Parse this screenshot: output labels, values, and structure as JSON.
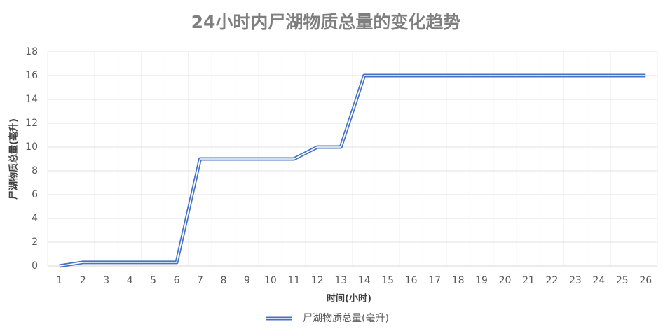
{
  "chart_data": {
    "type": "line",
    "title": "24小时内尸湖物质总量的变化趋势",
    "x_label": "时间(小时)",
    "y_label": "尸湖物质总量(毫升)",
    "categories": [
      "1",
      "2",
      "3",
      "4",
      "5",
      "6",
      "7",
      "8",
      "9",
      "10",
      "11",
      "12",
      "13",
      "14",
      "15",
      "16",
      "17",
      "18",
      "19",
      "20",
      "21",
      "22",
      "23",
      "24",
      "25",
      "26"
    ],
    "series": [
      {
        "name": "尸湖物质总量(毫升)",
        "color": "#4472c4",
        "values": [
          0,
          0.3,
          0.3,
          0.3,
          0.3,
          0.3,
          9,
          9,
          9,
          9,
          9,
          10,
          10,
          16,
          16,
          16,
          16,
          16,
          16,
          16,
          16,
          16,
          16,
          16,
          16,
          16
        ]
      }
    ],
    "ylim": [
      0,
      18
    ],
    "yticks": [
      0,
      2,
      4,
      6,
      8,
      10,
      12,
      14,
      16,
      18
    ],
    "grid": true,
    "legend": "bottom"
  }
}
